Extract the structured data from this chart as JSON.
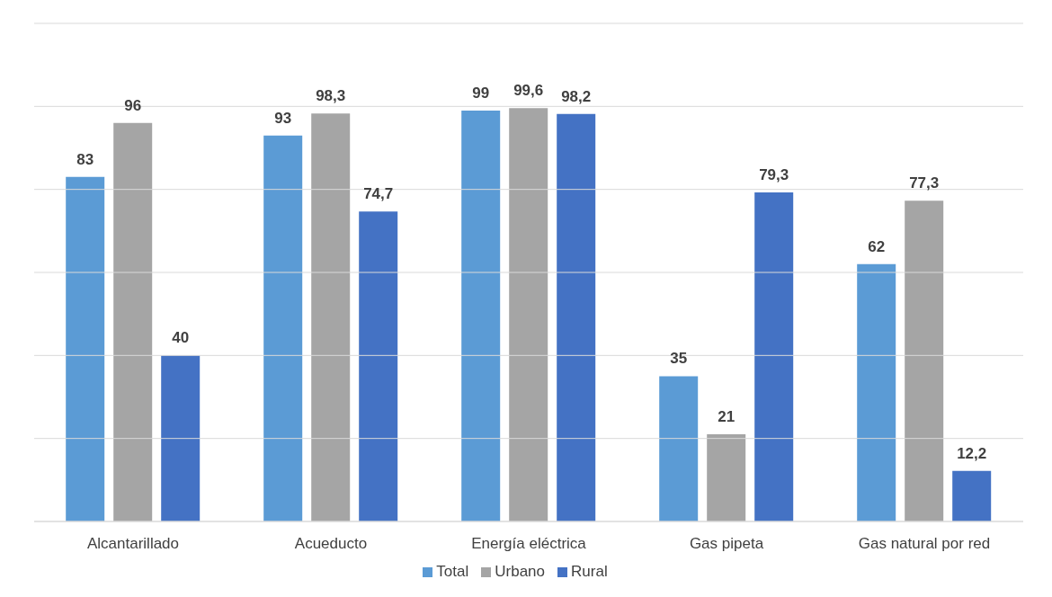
{
  "chart_data": {
    "type": "bar",
    "categories": [
      "Alcantarillado",
      "Acueducto",
      "Energía eléctrica",
      "Gas pipeta",
      "Gas natural por red"
    ],
    "series": [
      {
        "name": "Total",
        "color": "#5b9bd5",
        "values": [
          83,
          93,
          99,
          35,
          62
        ],
        "value_labels": [
          "83",
          "93",
          "99",
          "35",
          "62"
        ]
      },
      {
        "name": "Urbano",
        "color": "#a5a5a5",
        "values": [
          96,
          98.3,
          99.6,
          21,
          77.3
        ],
        "value_labels": [
          "96",
          "98,3",
          "99,6",
          "21",
          "77,3"
        ]
      },
      {
        "name": "Rural",
        "color": "#4472c4",
        "values": [
          40,
          74.7,
          98.2,
          79.3,
          12.2
        ],
        "value_labels": [
          "40",
          "74,7",
          "98,2",
          "79,3",
          "12,2"
        ]
      }
    ],
    "ylim": [
      0,
      120
    ],
    "yticks": [
      {
        "value": 0,
        "label": null
      },
      {
        "value": 20,
        "label": null
      },
      {
        "value": 40,
        "label": null
      },
      {
        "value": 60,
        "label": null
      },
      {
        "value": 80,
        "label": null
      },
      {
        "value": 100,
        "label": null
      },
      {
        "value": 120,
        "label": null
      }
    ],
    "tick_labels": "x",
    "grid": "y",
    "legend": "bottom"
  }
}
